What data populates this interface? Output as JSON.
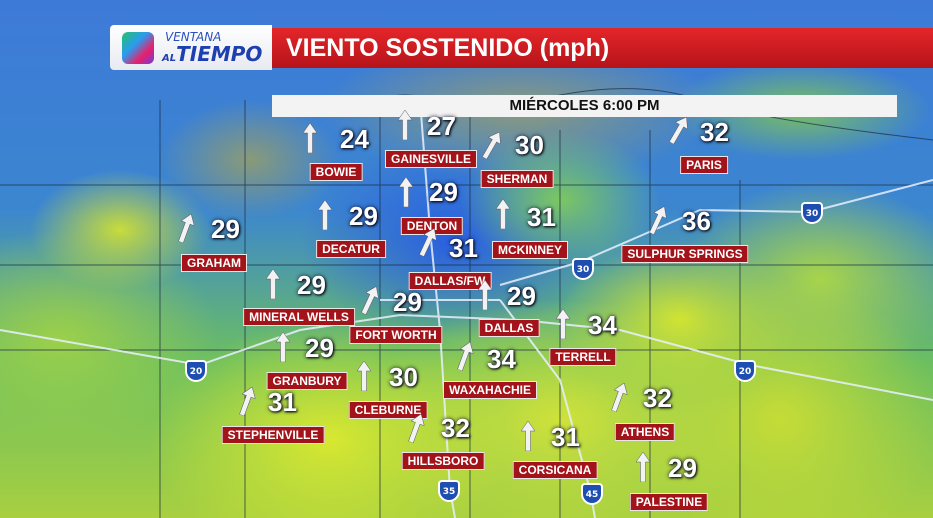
{
  "header": {
    "brand_top": "VENTANA",
    "brand_al": "AL",
    "brand_main": "TIEMPO",
    "title": "VIENTO SOSTENIDO (mph)",
    "subtitle": "MIÉRCOLES 6:00 PM"
  },
  "colors": {
    "title_bar": "#d11f24",
    "label_bg": "#a3141a",
    "calm": "#3a6fd0",
    "breezy": "#c8dc3a"
  },
  "highways": [
    {
      "num": "30"
    },
    {
      "num": "30"
    },
    {
      "num": "20"
    },
    {
      "num": "20"
    },
    {
      "num": "35"
    },
    {
      "num": "45"
    }
  ],
  "cities": [
    {
      "name": "BOWIE",
      "speed": "24",
      "dir_deg": 0
    },
    {
      "name": "GAINESVILLE",
      "speed": "27",
      "dir_deg": 0
    },
    {
      "name": "SHERMAN",
      "speed": "30",
      "dir_deg": 30
    },
    {
      "name": "PARIS",
      "speed": "32",
      "dir_deg": 30
    },
    {
      "name": "DENTON",
      "speed": "29",
      "dir_deg": 0
    },
    {
      "name": "MCKINNEY",
      "speed": "31",
      "dir_deg": 0
    },
    {
      "name": "DECATUR",
      "speed": "29",
      "dir_deg": 0
    },
    {
      "name": "GRAHAM",
      "speed": "29",
      "dir_deg": 20
    },
    {
      "name": "SULPHUR SPRINGS",
      "speed": "36",
      "dir_deg": 25
    },
    {
      "name": "DALLAS/FW",
      "speed": "31",
      "dir_deg": 25
    },
    {
      "name": "MINERAL WELLS",
      "speed": "29",
      "dir_deg": 0
    },
    {
      "name": "FORT WORTH",
      "speed": "29",
      "dir_deg": 25
    },
    {
      "name": "DALLAS",
      "speed": "29",
      "dir_deg": 0
    },
    {
      "name": "TERRELL",
      "speed": "34",
      "dir_deg": 0
    },
    {
      "name": "GRANBURY",
      "speed": "29",
      "dir_deg": 0
    },
    {
      "name": "WAXAHACHIE",
      "speed": "34",
      "dir_deg": 20
    },
    {
      "name": "CLEBURNE",
      "speed": "30",
      "dir_deg": 0
    },
    {
      "name": "STEPHENVILLE",
      "speed": "31",
      "dir_deg": 20
    },
    {
      "name": "ATHENS",
      "speed": "32",
      "dir_deg": 20
    },
    {
      "name": "HILLSBORO",
      "speed": "32",
      "dir_deg": 20
    },
    {
      "name": "CORSICANA",
      "speed": "31",
      "dir_deg": 0
    },
    {
      "name": "PALESTINE",
      "speed": "29",
      "dir_deg": 0
    }
  ]
}
